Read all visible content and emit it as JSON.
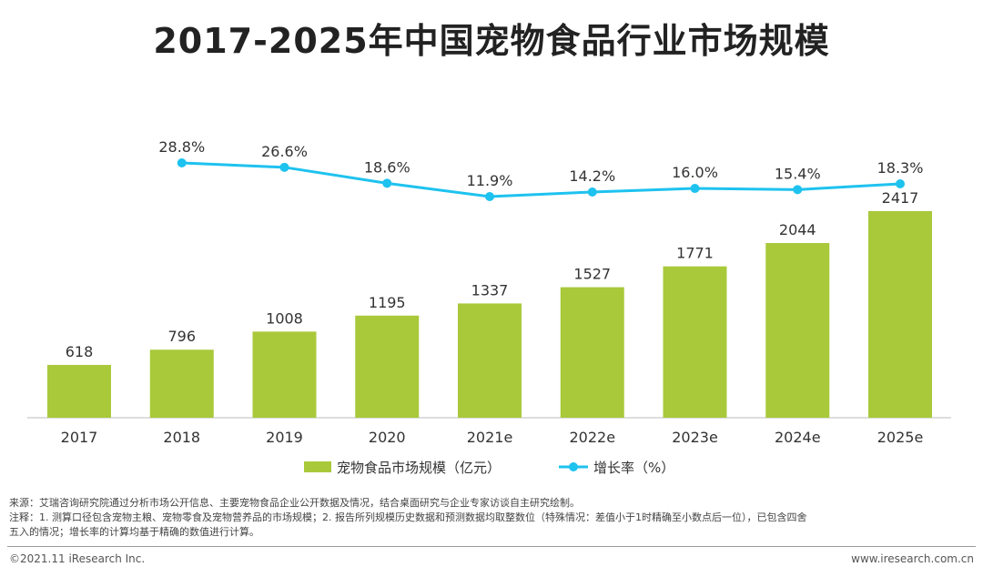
{
  "chart_data": {
    "type": "bar+line",
    "title": "2017-2025年中国宠物食品行业市场规模",
    "categories": [
      "2017",
      "2018",
      "2019",
      "2020",
      "2021e",
      "2022e",
      "2023e",
      "2024e",
      "2025e"
    ],
    "series": [
      {
        "name": "宠物食品市场规模（亿元）",
        "type": "bar",
        "color": "#a9c93b",
        "values": [
          618,
          796,
          1008,
          1195,
          1337,
          1527,
          1771,
          2044,
          2417
        ],
        "labels": [
          "618",
          "796",
          "1008",
          "1195",
          "1337",
          "1527",
          "1771",
          "2044",
          "2417"
        ]
      },
      {
        "name": "增长率（%）",
        "type": "line",
        "color": "#1ec2ef",
        "values": [
          null,
          28.8,
          26.6,
          18.6,
          11.9,
          14.2,
          16.0,
          15.4,
          18.3
        ],
        "labels": [
          "",
          "28.8%",
          "26.6%",
          "18.6%",
          "11.9%",
          "14.2%",
          "16.0%",
          "15.4%",
          "18.3%"
        ]
      }
    ],
    "legend": "bottom",
    "grid": false
  },
  "notes": {
    "source": "来源：艾瑞咨询研究院通过分析市场公开信息、主要宠物食品企业公开数据及情况，结合桌面研究与企业专家访谈自主研究绘制。",
    "note1": "注释：1. 测算口径包含宠物主粮、宠物零食及宠物营养品的市场规模；2. 报告所列规模历史数据和预测数据均取整数位（特殊情况：差值小于1时精确至小数点后一位），已包含四舍",
    "note2": "五入的情况；增长率的计算均基于精确的数值进行计算。"
  },
  "footer": {
    "copyright": "©2021.11 iResearch Inc.",
    "url": "www.iresearch.com.cn"
  }
}
